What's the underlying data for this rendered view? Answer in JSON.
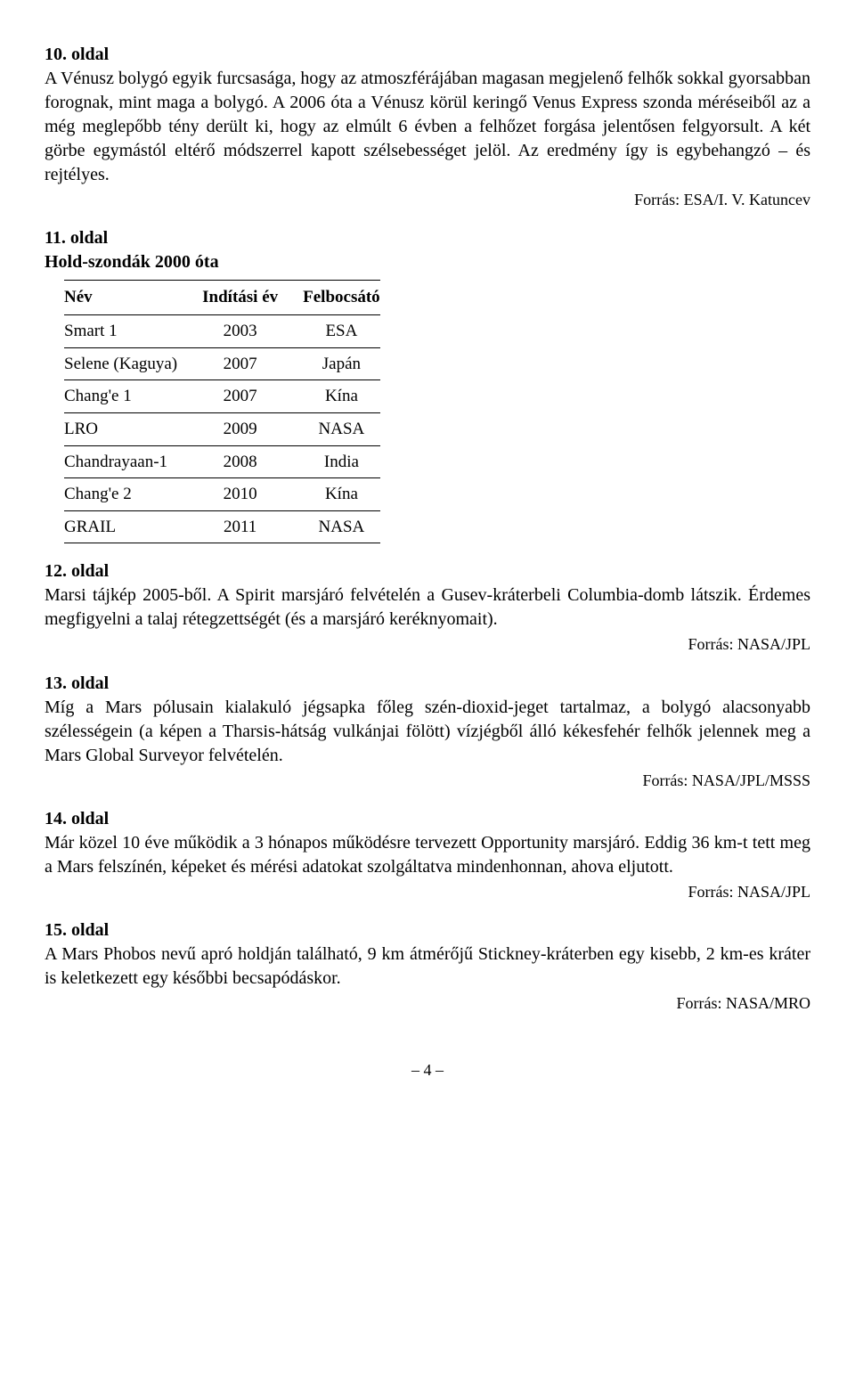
{
  "sections": {
    "s10": {
      "heading": "10. oldal",
      "body": "A Vénusz bolygó egyik furcsasága, hogy az atmoszférájában magasan megjelenő felhők sokkal gyorsabban forognak, mint maga a bolygó. A 2006 óta a Vénusz körül keringő Venus Express szonda méréseiből az a még meglepőbb tény derült ki, hogy az elmúlt 6 évben a felhőzet forgása jelentősen felgyorsult. A két görbe egymástól eltérő módszerrel kapott szélsebességet jelöl. Az eredmény így is egybehangzó – és rejtélyes.",
      "source": "Forrás: ESA/I. V. Katuncev"
    },
    "s11": {
      "heading": "11. oldal",
      "subtitle": "Hold-szondák 2000 óta"
    },
    "s12": {
      "heading": "12. oldal",
      "body": "Marsi tájkép 2005-ből. A Spirit marsjáró felvételén a Gusev-kráterbeli Columbia-domb látszik. Érdemes megfigyelni a talaj rétegzettségét (és a marsjáró keréknyomait).",
      "source": "Forrás: NASA/JPL"
    },
    "s13": {
      "heading": "13. oldal",
      "body": "Míg a Mars pólusain kialakuló jégsapka főleg szén-dioxid-jeget tartalmaz, a bolygó alacsonyabb szélességein (a képen a Tharsis-hátság vulkánjai fölött) vízjégből álló kékesfehér felhők jelennek meg a Mars Global Surveyor felvételén.",
      "source": "Forrás: NASA/JPL/MSSS"
    },
    "s14": {
      "heading": "14. oldal",
      "body": "Már közel 10 éve működik a 3 hónapos működésre tervezett Opportunity marsjáró. Eddig 36 km-t tett meg a Mars felszínén, képeket és mérési adatokat szolgáltatva mindenhonnan, ahova eljutott.",
      "source": "Forrás: NASA/JPL"
    },
    "s15": {
      "heading": "15. oldal",
      "body": "A Mars Phobos nevű apró holdján található, 9 km átmérőjű Stickney-kráterben egy kisebb, 2 km-es kráter is keletkezett egy későbbi becsapódáskor.",
      "source": "Forrás: NASA/MRO"
    }
  },
  "table": {
    "columns": [
      "Név",
      "Indítási év",
      "Felbocsátó"
    ],
    "rows": [
      [
        "Smart 1",
        "2003",
        "ESA"
      ],
      [
        "Selene (Kaguya)",
        "2007",
        "Japán"
      ],
      [
        "Chang'e 1",
        "2007",
        "Kína"
      ],
      [
        "LRO",
        "2009",
        "NASA"
      ],
      [
        "Chandrayaan-1",
        "2008",
        "India"
      ],
      [
        "Chang'e 2",
        "2010",
        "Kína"
      ],
      [
        "GRAIL",
        "2011",
        "NASA"
      ]
    ]
  },
  "page_number": "– 4 –"
}
